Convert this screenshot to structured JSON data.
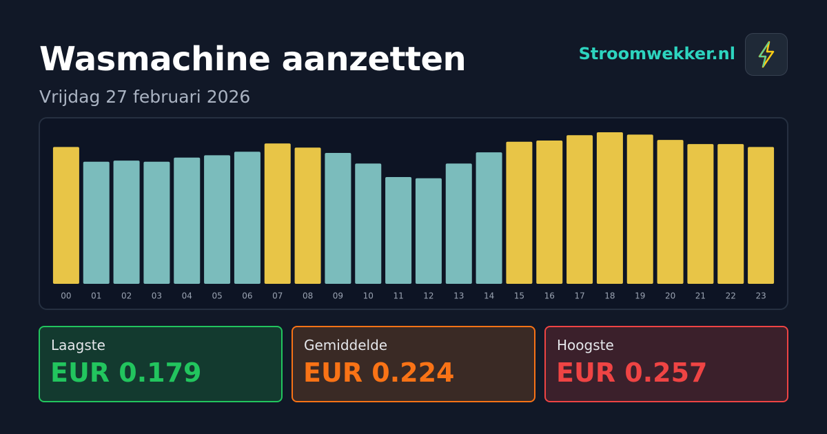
{
  "header": {
    "title": "Wasmachine aanzetten",
    "subtitle": "Vrijdag 27 februari 2026",
    "brand": "Stroomwekker.nl"
  },
  "chart_data": {
    "type": "bar",
    "categories": [
      "00",
      "01",
      "02",
      "03",
      "04",
      "05",
      "06",
      "07",
      "08",
      "09",
      "10",
      "11",
      "12",
      "13",
      "14",
      "15",
      "16",
      "17",
      "18",
      "19",
      "20",
      "21",
      "22",
      "23"
    ],
    "values": [
      0.232,
      0.207,
      0.209,
      0.207,
      0.214,
      0.218,
      0.224,
      0.238,
      0.231,
      0.222,
      0.204,
      0.181,
      0.179,
      0.204,
      0.223,
      0.241,
      0.243,
      0.252,
      0.257,
      0.253,
      0.244,
      0.237,
      0.237,
      0.232
    ],
    "colors": [
      "#e8c547",
      "#7bbcbc",
      "#7bbcbc",
      "#7bbcbc",
      "#7bbcbc",
      "#7bbcbc",
      "#7bbcbc",
      "#e8c547",
      "#e8c547",
      "#7bbcbc",
      "#7bbcbc",
      "#7bbcbc",
      "#7bbcbc",
      "#7bbcbc",
      "#7bbcbc",
      "#e8c547",
      "#e8c547",
      "#e8c547",
      "#e8c547",
      "#e8c547",
      "#e8c547",
      "#e8c547",
      "#e8c547",
      "#e8c547"
    ]
  },
  "stats": [
    {
      "label": "Laagste",
      "value": "EUR 0.179"
    },
    {
      "label": "Gemiddelde",
      "value": "EUR 0.224"
    },
    {
      "label": "Hoogste",
      "value": "EUR 0.257"
    }
  ]
}
